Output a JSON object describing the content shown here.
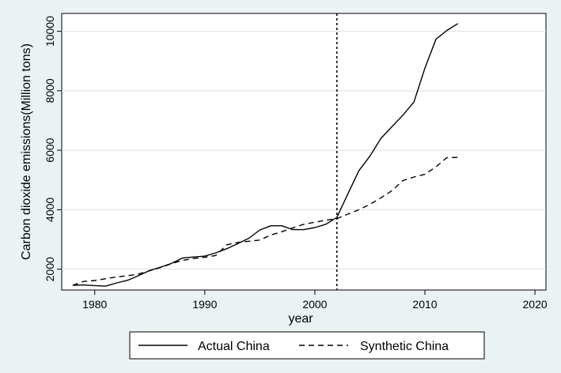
{
  "chart_data": {
    "type": "line",
    "xlabel": "year",
    "ylabel": "Carbon dioxide emissions(Million tons)",
    "xlim": [
      1977,
      2021
    ],
    "ylim": [
      1300,
      10600
    ],
    "x_ticks": [
      1980,
      1990,
      2000,
      2010,
      2020
    ],
    "y_ticks": [
      2000,
      4000,
      6000,
      8000,
      10000
    ],
    "grid": "horizontal",
    "legend_position": "bottom",
    "reference_line": {
      "x": 2002
    },
    "series": [
      {
        "name": "Actual China",
        "style": "solid",
        "x": [
          1978,
          1979,
          1980,
          1981,
          1982,
          1983,
          1984,
          1985,
          1986,
          1987,
          1988,
          1989,
          1990,
          1991,
          1992,
          1993,
          1994,
          1995,
          1996,
          1997,
          1998,
          1999,
          2000,
          2001,
          2002,
          2003,
          2004,
          2005,
          2006,
          2007,
          2008,
          2009,
          2010,
          2011,
          2012,
          2013
        ],
        "values": [
          1460,
          1470,
          1450,
          1430,
          1540,
          1630,
          1790,
          1960,
          2070,
          2200,
          2380,
          2410,
          2440,
          2550,
          2690,
          2860,
          3040,
          3320,
          3460,
          3460,
          3330,
          3330,
          3400,
          3510,
          3740,
          4530,
          5310,
          5800,
          6400,
          6790,
          7180,
          7620,
          8760,
          9730,
          10030,
          10260
        ]
      },
      {
        "name": "Synthetic China",
        "style": "dashed",
        "x": [
          1978,
          1979,
          1980,
          1981,
          1982,
          1983,
          1984,
          1985,
          1986,
          1987,
          1988,
          1989,
          1990,
          1991,
          1992,
          1993,
          1994,
          1995,
          1996,
          1997,
          1998,
          1999,
          2000,
          2001,
          2002,
          2003,
          2004,
          2005,
          2006,
          2007,
          2008,
          2009,
          2010,
          2011,
          2012,
          2013
        ],
        "values": [
          1460,
          1590,
          1620,
          1680,
          1740,
          1780,
          1840,
          1950,
          2060,
          2190,
          2300,
          2360,
          2400,
          2460,
          2820,
          2900,
          2940,
          2980,
          3150,
          3260,
          3390,
          3510,
          3580,
          3650,
          3700,
          3850,
          4000,
          4180,
          4400,
          4640,
          4980,
          5100,
          5190,
          5440,
          5750,
          5760
        ]
      }
    ]
  }
}
